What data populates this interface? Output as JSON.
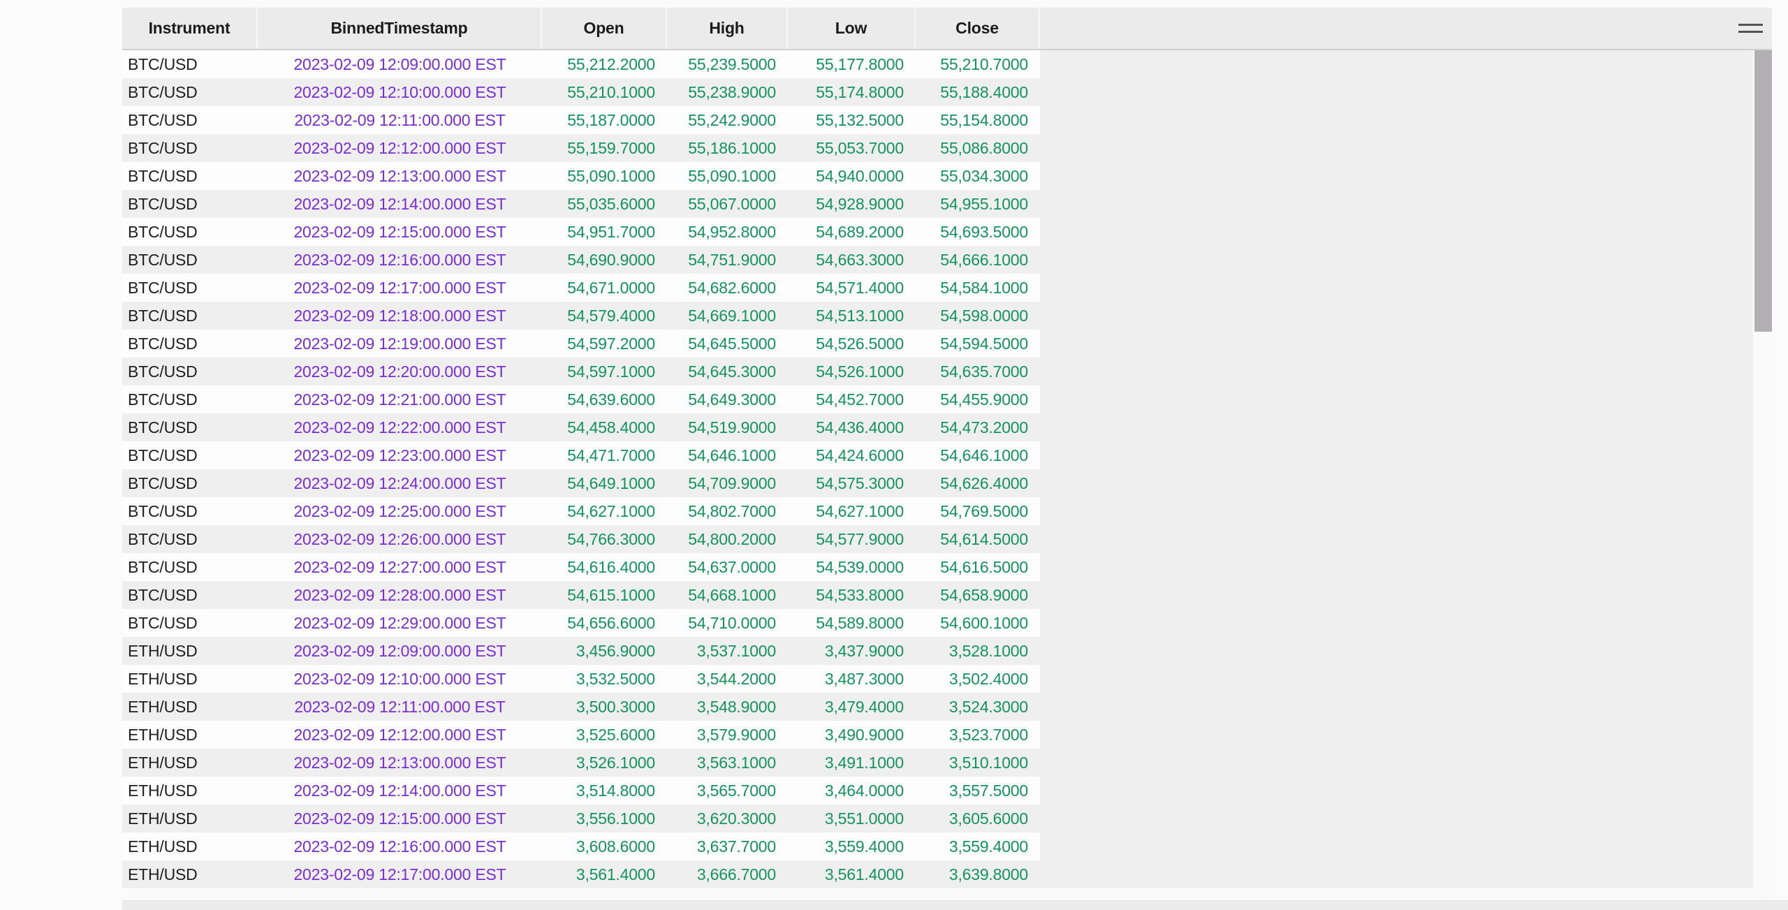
{
  "table": {
    "columns": [
      {
        "label": "Instrument"
      },
      {
        "label": "BinnedTimestamp"
      },
      {
        "label": "Open"
      },
      {
        "label": "High"
      },
      {
        "label": "Low"
      },
      {
        "label": "Close"
      }
    ],
    "rows": [
      {
        "instrument": "BTC/USD",
        "timestamp": "2023-02-09 12:09:00.000 EST",
        "open": "55,212.2000",
        "high": "55,239.5000",
        "low": "55,177.8000",
        "close": "55,210.7000"
      },
      {
        "instrument": "BTC/USD",
        "timestamp": "2023-02-09 12:10:00.000 EST",
        "open": "55,210.1000",
        "high": "55,238.9000",
        "low": "55,174.8000",
        "close": "55,188.4000"
      },
      {
        "instrument": "BTC/USD",
        "timestamp": "2023-02-09 12:11:00.000 EST",
        "open": "55,187.0000",
        "high": "55,242.9000",
        "low": "55,132.5000",
        "close": "55,154.8000"
      },
      {
        "instrument": "BTC/USD",
        "timestamp": "2023-02-09 12:12:00.000 EST",
        "open": "55,159.7000",
        "high": "55,186.1000",
        "low": "55,053.7000",
        "close": "55,086.8000"
      },
      {
        "instrument": "BTC/USD",
        "timestamp": "2023-02-09 12:13:00.000 EST",
        "open": "55,090.1000",
        "high": "55,090.1000",
        "low": "54,940.0000",
        "close": "55,034.3000"
      },
      {
        "instrument": "BTC/USD",
        "timestamp": "2023-02-09 12:14:00.000 EST",
        "open": "55,035.6000",
        "high": "55,067.0000",
        "low": "54,928.9000",
        "close": "54,955.1000"
      },
      {
        "instrument": "BTC/USD",
        "timestamp": "2023-02-09 12:15:00.000 EST",
        "open": "54,951.7000",
        "high": "54,952.8000",
        "low": "54,689.2000",
        "close": "54,693.5000"
      },
      {
        "instrument": "BTC/USD",
        "timestamp": "2023-02-09 12:16:00.000 EST",
        "open": "54,690.9000",
        "high": "54,751.9000",
        "low": "54,663.3000",
        "close": "54,666.1000"
      },
      {
        "instrument": "BTC/USD",
        "timestamp": "2023-02-09 12:17:00.000 EST",
        "open": "54,671.0000",
        "high": "54,682.6000",
        "low": "54,571.4000",
        "close": "54,584.1000"
      },
      {
        "instrument": "BTC/USD",
        "timestamp": "2023-02-09 12:18:00.000 EST",
        "open": "54,579.4000",
        "high": "54,669.1000",
        "low": "54,513.1000",
        "close": "54,598.0000"
      },
      {
        "instrument": "BTC/USD",
        "timestamp": "2023-02-09 12:19:00.000 EST",
        "open": "54,597.2000",
        "high": "54,645.5000",
        "low": "54,526.5000",
        "close": "54,594.5000"
      },
      {
        "instrument": "BTC/USD",
        "timestamp": "2023-02-09 12:20:00.000 EST",
        "open": "54,597.1000",
        "high": "54,645.3000",
        "low": "54,526.1000",
        "close": "54,635.7000"
      },
      {
        "instrument": "BTC/USD",
        "timestamp": "2023-02-09 12:21:00.000 EST",
        "open": "54,639.6000",
        "high": "54,649.3000",
        "low": "54,452.7000",
        "close": "54,455.9000"
      },
      {
        "instrument": "BTC/USD",
        "timestamp": "2023-02-09 12:22:00.000 EST",
        "open": "54,458.4000",
        "high": "54,519.9000",
        "low": "54,436.4000",
        "close": "54,473.2000"
      },
      {
        "instrument": "BTC/USD",
        "timestamp": "2023-02-09 12:23:00.000 EST",
        "open": "54,471.7000",
        "high": "54,646.1000",
        "low": "54,424.6000",
        "close": "54,646.1000"
      },
      {
        "instrument": "BTC/USD",
        "timestamp": "2023-02-09 12:24:00.000 EST",
        "open": "54,649.1000",
        "high": "54,709.9000",
        "low": "54,575.3000",
        "close": "54,626.4000"
      },
      {
        "instrument": "BTC/USD",
        "timestamp": "2023-02-09 12:25:00.000 EST",
        "open": "54,627.1000",
        "high": "54,802.7000",
        "low": "54,627.1000",
        "close": "54,769.5000"
      },
      {
        "instrument": "BTC/USD",
        "timestamp": "2023-02-09 12:26:00.000 EST",
        "open": "54,766.3000",
        "high": "54,800.2000",
        "low": "54,577.9000",
        "close": "54,614.5000"
      },
      {
        "instrument": "BTC/USD",
        "timestamp": "2023-02-09 12:27:00.000 EST",
        "open": "54,616.4000",
        "high": "54,637.0000",
        "low": "54,539.0000",
        "close": "54,616.5000"
      },
      {
        "instrument": "BTC/USD",
        "timestamp": "2023-02-09 12:28:00.000 EST",
        "open": "54,615.1000",
        "high": "54,668.1000",
        "low": "54,533.8000",
        "close": "54,658.9000"
      },
      {
        "instrument": "BTC/USD",
        "timestamp": "2023-02-09 12:29:00.000 EST",
        "open": "54,656.6000",
        "high": "54,710.0000",
        "low": "54,589.8000",
        "close": "54,600.1000"
      },
      {
        "instrument": "ETH/USD",
        "timestamp": "2023-02-09 12:09:00.000 EST",
        "open": "3,456.9000",
        "high": "3,537.1000",
        "low": "3,437.9000",
        "close": "3,528.1000"
      },
      {
        "instrument": "ETH/USD",
        "timestamp": "2023-02-09 12:10:00.000 EST",
        "open": "3,532.5000",
        "high": "3,544.2000",
        "low": "3,487.3000",
        "close": "3,502.4000"
      },
      {
        "instrument": "ETH/USD",
        "timestamp": "2023-02-09 12:11:00.000 EST",
        "open": "3,500.3000",
        "high": "3,548.9000",
        "low": "3,479.4000",
        "close": "3,524.3000"
      },
      {
        "instrument": "ETH/USD",
        "timestamp": "2023-02-09 12:12:00.000 EST",
        "open": "3,525.6000",
        "high": "3,579.9000",
        "low": "3,490.9000",
        "close": "3,523.7000"
      },
      {
        "instrument": "ETH/USD",
        "timestamp": "2023-02-09 12:13:00.000 EST",
        "open": "3,526.1000",
        "high": "3,563.1000",
        "low": "3,491.1000",
        "close": "3,510.1000"
      },
      {
        "instrument": "ETH/USD",
        "timestamp": "2023-02-09 12:14:00.000 EST",
        "open": "3,514.8000",
        "high": "3,565.7000",
        "low": "3,464.0000",
        "close": "3,557.5000"
      },
      {
        "instrument": "ETH/USD",
        "timestamp": "2023-02-09 12:15:00.000 EST",
        "open": "3,556.1000",
        "high": "3,620.3000",
        "low": "3,551.0000",
        "close": "3,605.6000"
      },
      {
        "instrument": "ETH/USD",
        "timestamp": "2023-02-09 12:16:00.000 EST",
        "open": "3,608.6000",
        "high": "3,637.7000",
        "low": "3,559.4000",
        "close": "3,559.4000"
      },
      {
        "instrument": "ETH/USD",
        "timestamp": "2023-02-09 12:17:00.000 EST",
        "open": "3,561.4000",
        "high": "3,666.7000",
        "low": "3,561.4000",
        "close": "3,639.8000"
      }
    ]
  },
  "icons": {
    "menu": "hamburger-icon"
  },
  "colors": {
    "timestamp_text": "#7c2bd9",
    "number_text": "#12945c",
    "header_bg": "#ebebeb",
    "row_stripe_gray": "#f0eff0",
    "row_stripe_white": "#fdfdfd",
    "scrollbar_thumb": "#b2afb2"
  }
}
